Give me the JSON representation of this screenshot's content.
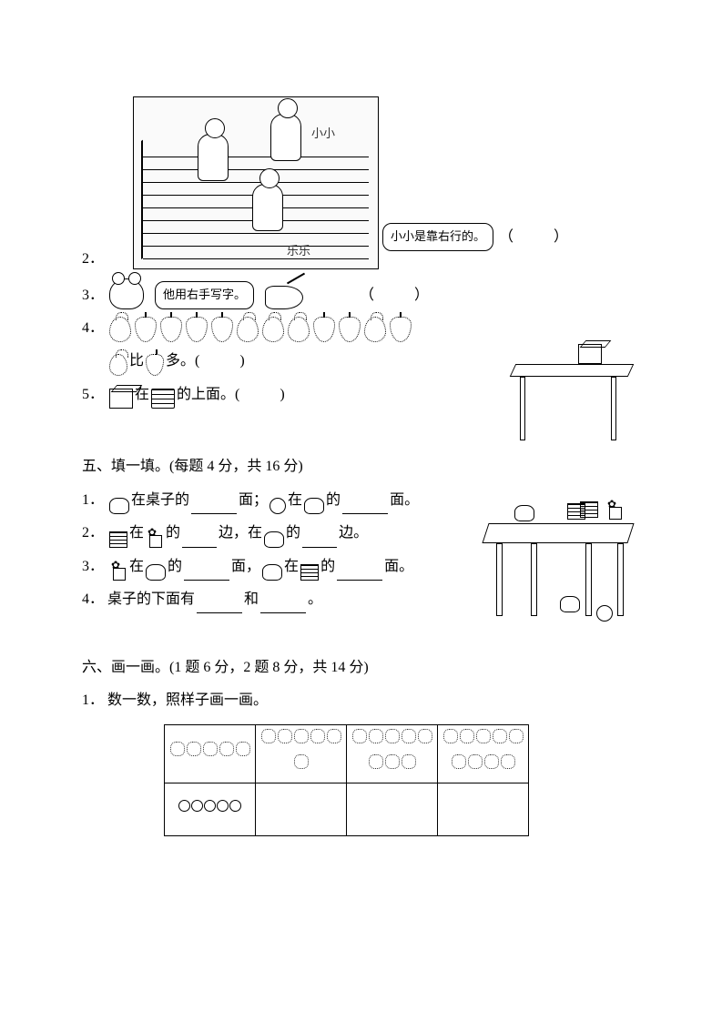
{
  "q2": {
    "num": "2．",
    "label_xiaoxiao": "小小",
    "label_lele": "乐乐",
    "bubble": "小小是靠右行的。",
    "paren": "（　　）"
  },
  "q3": {
    "num": "3．",
    "bubble": "他用右手写字。",
    "paren": "（　　）"
  },
  "q4": {
    "num": "4．",
    "text_a": "比",
    "text_b": "多。",
    "paren": "(　　)"
  },
  "q5": {
    "num": "5．",
    "text_a": "在",
    "text_b": "的上面。",
    "paren": "(　　)"
  },
  "sec5": {
    "title": "五、填一填。(每题 4 分，共 16 分)"
  },
  "s5q1": {
    "num": "1．",
    "a": "在桌子的",
    "b": "面；",
    "c": "在",
    "d": "的",
    "e": "面。"
  },
  "s5q2": {
    "num": "2．",
    "a": "在",
    "b": "的",
    "c": "边，在",
    "d": "的",
    "e": "边。"
  },
  "s5q3": {
    "num": "3．",
    "a": "在",
    "b": "的",
    "c": "面，",
    "d": "在",
    "e": "的",
    "f": "面。"
  },
  "s5q4": {
    "num": "4．",
    "a": "桌子的下面有",
    "b": "和",
    "c": "。"
  },
  "sec6": {
    "title": "六、画一画。(1 题 6 分，2 题 8 分，共 14 分)"
  },
  "s6q1": {
    "num": "1．",
    "text": "数一数，照样子画一画。"
  },
  "table": {
    "counts": [
      5,
      6,
      8,
      9
    ],
    "example_circles": 5
  }
}
